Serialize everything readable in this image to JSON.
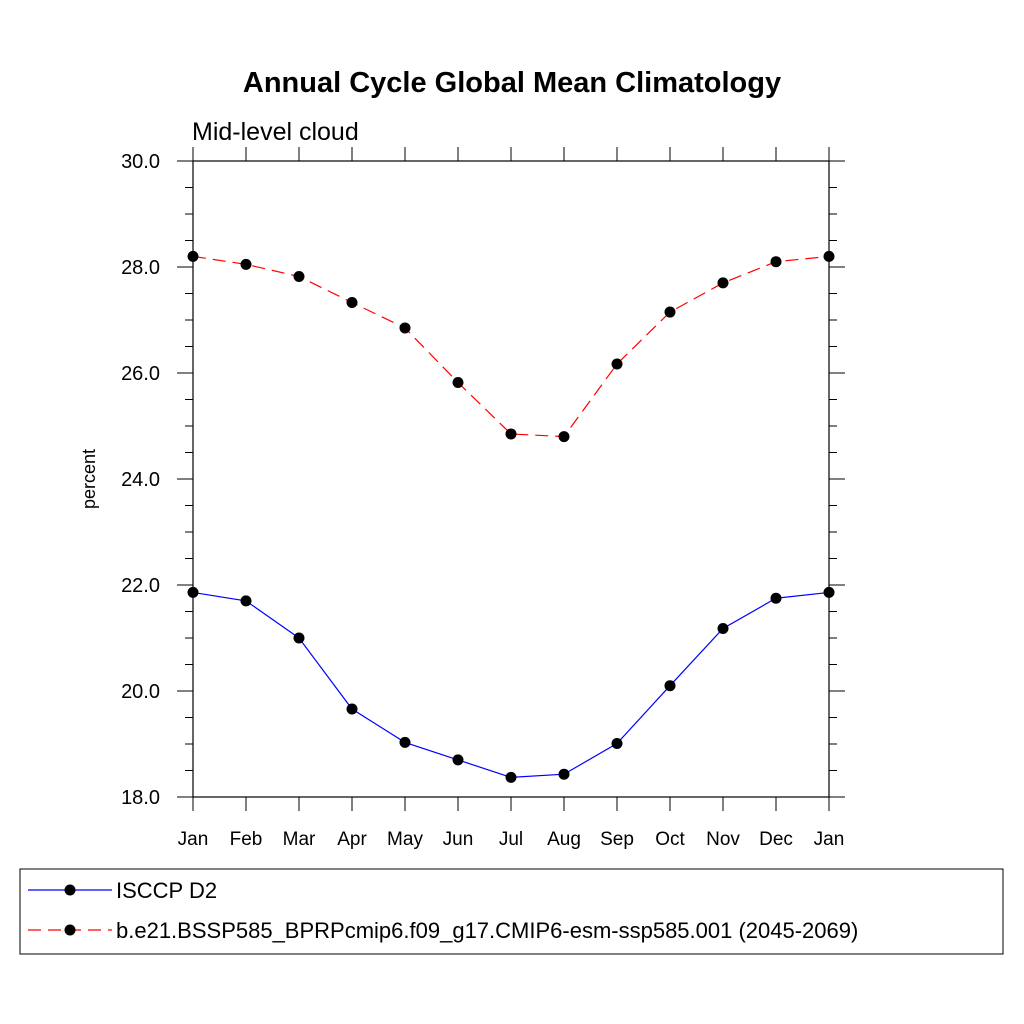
{
  "chart_data": {
    "type": "line",
    "title": "Annual Cycle Global Mean Climatology",
    "subtitle": "Mid-level cloud",
    "ylabel": "percent",
    "xlabel": "",
    "ylim": [
      18.0,
      30.0
    ],
    "y_major_ticks": [
      "18.0",
      "20.0",
      "22.0",
      "24.0",
      "26.0",
      "28.0",
      "30.0"
    ],
    "categories": [
      "Jan",
      "Feb",
      "Mar",
      "Apr",
      "May",
      "Jun",
      "Jul",
      "Aug",
      "Sep",
      "Oct",
      "Nov",
      "Dec",
      "Jan"
    ],
    "grid": false,
    "legend_position": "bottom",
    "series": [
      {
        "name": "ISCCP D2",
        "color": "#0000ff",
        "dash": "solid",
        "values": [
          21.86,
          21.7,
          21.0,
          19.66,
          19.03,
          18.7,
          18.37,
          18.43,
          19.01,
          20.1,
          21.18,
          21.75,
          21.86
        ]
      },
      {
        "name": "b.e21.BSSP585_BPRPcmip6.f09_g17.CMIP6-esm-ssp585.001 (2045-2069)",
        "color": "#ff0000",
        "dash": "dashed",
        "values": [
          28.2,
          28.05,
          27.82,
          27.33,
          26.85,
          25.82,
          24.85,
          24.8,
          26.17,
          27.15,
          27.7,
          28.1,
          28.2
        ]
      }
    ]
  }
}
